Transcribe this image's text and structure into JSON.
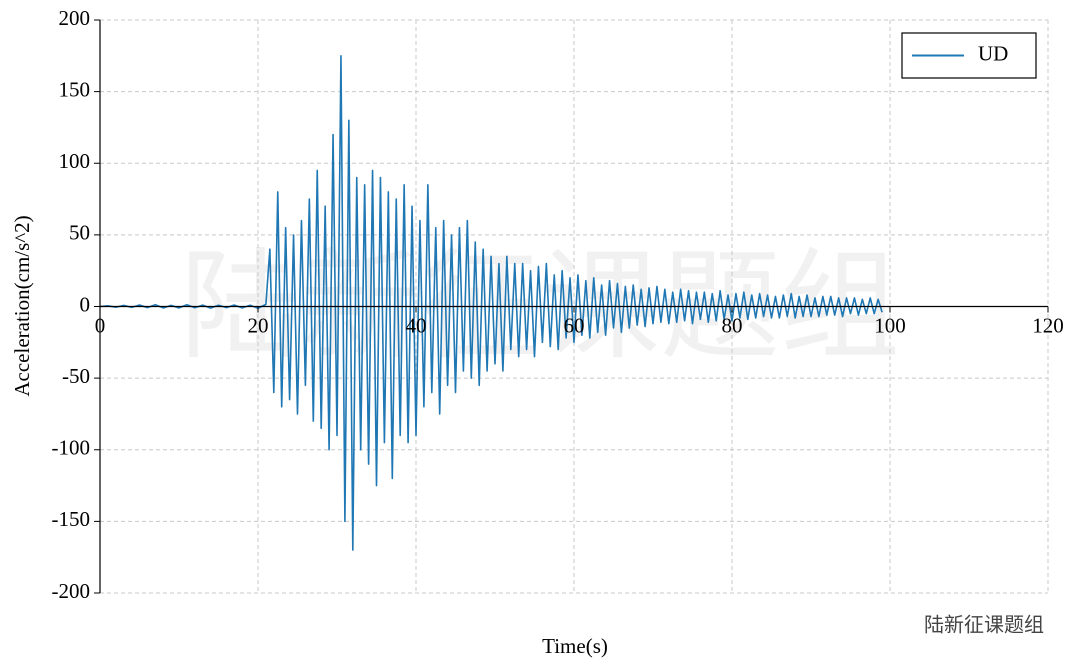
{
  "chart_data": {
    "type": "line",
    "xlabel": "Time(s)",
    "ylabel": "Acceleration(cm/s^2)",
    "watermark": "陆新征课题组",
    "credit": "陆新征课题组",
    "xlim": [
      0,
      120
    ],
    "xticks": [
      0,
      20,
      40,
      60,
      80,
      100,
      120
    ],
    "ylim": [
      -200,
      200
    ],
    "yticks": [
      -200,
      -150,
      -100,
      -50,
      0,
      50,
      100,
      150,
      200
    ],
    "grid": true,
    "legend": "upper right",
    "x": [
      0,
      1,
      2,
      3,
      4,
      5,
      6,
      7,
      8,
      9,
      10,
      11,
      12,
      13,
      14,
      15,
      16,
      17,
      18,
      19,
      20,
      21,
      21.5,
      22,
      22.5,
      23,
      23.5,
      24,
      24.5,
      25,
      25.5,
      26,
      26.5,
      27,
      27.5,
      28,
      28.5,
      29,
      29.5,
      30,
      30.5,
      31,
      31.5,
      32,
      32.5,
      33,
      33.5,
      34,
      34.5,
      35,
      35.5,
      36,
      36.5,
      37,
      37.5,
      38,
      38.5,
      39,
      39.5,
      40,
      40.5,
      41,
      41.5,
      42,
      42.5,
      43,
      43.5,
      44,
      44.5,
      45,
      45.5,
      46,
      46.5,
      47,
      47.5,
      48,
      48.5,
      49,
      49.5,
      50,
      50.5,
      51,
      51.5,
      52,
      52.5,
      53,
      53.5,
      54,
      54.5,
      55,
      55.5,
      56,
      56.5,
      57,
      57.5,
      58,
      58.5,
      59,
      59.5,
      60,
      60.5,
      61,
      61.5,
      62,
      62.5,
      63,
      63.5,
      64,
      64.5,
      65,
      65.5,
      66,
      66.5,
      67,
      67.5,
      68,
      68.5,
      69,
      69.5,
      70,
      70.5,
      71,
      71.5,
      72,
      72.5,
      73,
      73.5,
      74,
      74.5,
      75,
      75.5,
      76,
      76.5,
      77,
      77.5,
      78,
      78.5,
      79,
      79.5,
      80,
      80.5,
      81,
      81.5,
      82,
      82.5,
      83,
      83.5,
      84,
      84.5,
      85,
      85.5,
      86,
      86.5,
      87,
      87.5,
      88,
      88.5,
      89,
      89.5,
      90,
      90.5,
      91,
      91.5,
      92,
      92.5,
      93,
      93.5,
      94,
      94.5,
      95,
      95.5,
      96,
      96.5,
      97,
      97.5,
      98,
      98.5,
      99
    ],
    "series": [
      {
        "name": "UD",
        "color": "#1f77b4",
        "values": [
          0,
          0.5,
          -0.5,
          0.8,
          -0.6,
          1,
          -0.8,
          1.2,
          -1,
          0.8,
          -1,
          1.2,
          -0.9,
          1,
          -1.1,
          0.9,
          -0.8,
          1,
          -1,
          0.9,
          -1.2,
          1.5,
          40,
          -60,
          80,
          -70,
          55,
          -65,
          50,
          -75,
          60,
          -55,
          75,
          -80,
          95,
          -85,
          70,
          -100,
          120,
          -90,
          175,
          -150,
          130,
          -170,
          90,
          -100,
          85,
          -110,
          95,
          -125,
          90,
          -95,
          80,
          -120,
          75,
          -90,
          85,
          -95,
          70,
          -90,
          60,
          -70,
          85,
          -60,
          55,
          -75,
          60,
          -55,
          50,
          -60,
          55,
          -45,
          60,
          -50,
          45,
          -55,
          40,
          -45,
          35,
          -40,
          30,
          -45,
          35,
          -30,
          30,
          -35,
          30,
          -30,
          25,
          -35,
          28,
          -25,
          30,
          -28,
          22,
          -30,
          25,
          -22,
          20,
          -25,
          22,
          -20,
          18,
          -22,
          20,
          -18,
          15,
          -20,
          18,
          -15,
          16,
          -18,
          14,
          -15,
          15,
          -13,
          12,
          -14,
          13,
          -12,
          14,
          -11,
          12,
          -12,
          10,
          -11,
          12,
          -10,
          11,
          -12,
          10,
          -9,
          10,
          -11,
          9,
          -10,
          11,
          -9,
          8,
          -10,
          9,
          -8,
          10,
          -9,
          8,
          -8,
          9,
          -7,
          8,
          -8,
          7,
          -8,
          8,
          -7,
          9,
          -8,
          7,
          -7,
          8,
          -7,
          6,
          -7,
          7,
          -6,
          7,
          -6,
          6,
          -7,
          6,
          -5,
          6,
          -6,
          5,
          -5,
          6,
          -5,
          5,
          -4
        ]
      }
    ]
  }
}
